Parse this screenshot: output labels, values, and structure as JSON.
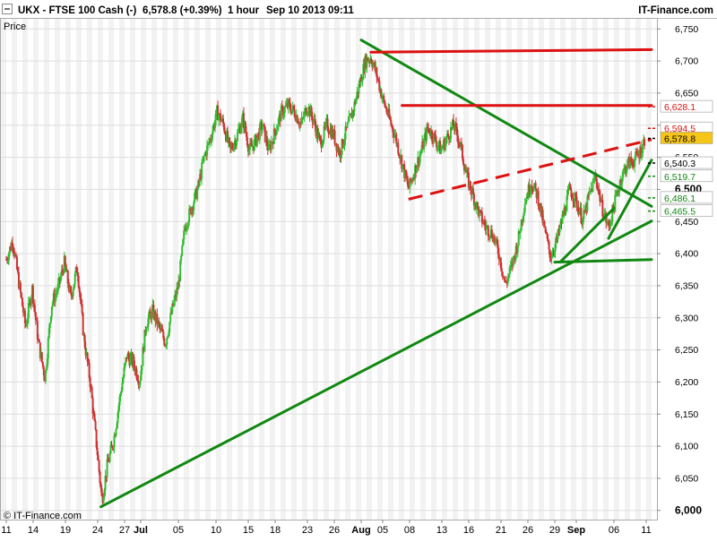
{
  "header": {
    "symbol": "UKX - FTSE 100 Cash (-)",
    "last_change": "6,578.8 (+0.39%)",
    "interval": "1 hour",
    "datetime": "Sep 10 2013 09:11",
    "brand": "IT-Finance.com"
  },
  "price_label": "Price",
  "copyright": "© IT-Finance.com",
  "colors": {
    "bull": "#33bb33",
    "bear": "#cc3333",
    "support": "#118811",
    "resistance": "#dd1111",
    "last_price_bg": "#f5c518",
    "grid_stripe": "#f2f2f2",
    "grid_line": "#dddddd"
  },
  "chart_data": {
    "type": "candlestick",
    "ylim": [
      5985,
      6765
    ],
    "yticks": [
      6000,
      6050,
      6100,
      6150,
      6200,
      6250,
      6300,
      6350,
      6400,
      6450,
      6500,
      6550,
      6600,
      6650,
      6700,
      6750
    ],
    "ytick_labels": [
      "6,000",
      "6,050",
      "6,100",
      "6,150",
      "6,200",
      "6,250",
      "6,300",
      "6,350",
      "6,400",
      "6,450",
      "6,500",
      "6,550",
      "6,600",
      "6,650",
      "6,700",
      "6,750"
    ],
    "xticks": [
      {
        "label": "11",
        "pos": 0.0
      },
      {
        "label": "14",
        "pos": 2.5
      },
      {
        "label": "19",
        "pos": 5.5
      },
      {
        "label": "24",
        "pos": 8.5
      },
      {
        "label": "27",
        "pos": 11.0
      },
      {
        "label": "Jul",
        "pos": 12.5,
        "bold": true
      },
      {
        "label": "05",
        "pos": 16.0
      },
      {
        "label": "10",
        "pos": 19.5
      },
      {
        "label": "15",
        "pos": 22.5
      },
      {
        "label": "18",
        "pos": 25.0
      },
      {
        "label": "23",
        "pos": 28.0
      },
      {
        "label": "26",
        "pos": 30.5
      },
      {
        "label": "Aug",
        "pos": 33.0,
        "bold": true
      },
      {
        "label": "05",
        "pos": 35.0
      },
      {
        "label": "08",
        "pos": 37.5
      },
      {
        "label": "13",
        "pos": 40.5
      },
      {
        "label": "16",
        "pos": 43.0
      },
      {
        "label": "21",
        "pos": 46.0
      },
      {
        "label": "26",
        "pos": 48.5
      },
      {
        "label": "29",
        "pos": 51.0
      },
      {
        "label": "Sep",
        "pos": 53.0,
        "bold": true
      },
      {
        "label": "06",
        "pos": 56.5
      },
      {
        "label": "11",
        "pos": 59.5
      }
    ],
    "xlim": [
      -0.5,
      60.5
    ],
    "close_path": [
      [
        0,
        6390
      ],
      [
        0.6,
        6420
      ],
      [
        1.2,
        6350
      ],
      [
        1.8,
        6285
      ],
      [
        2.4,
        6345
      ],
      [
        3.0,
        6260
      ],
      [
        3.6,
        6205
      ],
      [
        4.2,
        6320
      ],
      [
        4.8,
        6345
      ],
      [
        5.4,
        6385
      ],
      [
        6.0,
        6330
      ],
      [
        6.6,
        6380
      ],
      [
        7.2,
        6270
      ],
      [
        7.8,
        6200
      ],
      [
        8.4,
        6100
      ],
      [
        8.9,
        6015
      ],
      [
        9.4,
        6070
      ],
      [
        10.0,
        6110
      ],
      [
        10.6,
        6180
      ],
      [
        11.2,
        6240
      ],
      [
        11.8,
        6230
      ],
      [
        12.4,
        6200
      ],
      [
        13.0,
        6290
      ],
      [
        13.6,
        6310
      ],
      [
        14.2,
        6285
      ],
      [
        14.8,
        6260
      ],
      [
        15.4,
        6310
      ],
      [
        16.0,
        6350
      ],
      [
        16.6,
        6440
      ],
      [
        17.2,
        6470
      ],
      [
        17.8,
        6500
      ],
      [
        18.4,
        6550
      ],
      [
        19.0,
        6580
      ],
      [
        19.6,
        6620
      ],
      [
        20.2,
        6600
      ],
      [
        20.8,
        6560
      ],
      [
        21.4,
        6580
      ],
      [
        22.0,
        6610
      ],
      [
        22.6,
        6560
      ],
      [
        23.2,
        6575
      ],
      [
        23.8,
        6600
      ],
      [
        24.4,
        6560
      ],
      [
        25.0,
        6590
      ],
      [
        25.6,
        6620
      ],
      [
        26.2,
        6630
      ],
      [
        26.8,
        6620
      ],
      [
        27.4,
        6600
      ],
      [
        28.0,
        6630
      ],
      [
        28.6,
        6605
      ],
      [
        29.2,
        6570
      ],
      [
        29.8,
        6600
      ],
      [
        30.4,
        6585
      ],
      [
        31.0,
        6555
      ],
      [
        31.6,
        6590
      ],
      [
        32.2,
        6620
      ],
      [
        32.8,
        6660
      ],
      [
        33.4,
        6700
      ],
      [
        33.9,
        6705
      ],
      [
        34.4,
        6680
      ],
      [
        35.0,
        6640
      ],
      [
        35.6,
        6610
      ],
      [
        36.2,
        6580
      ],
      [
        36.8,
        6540
      ],
      [
        37.4,
        6500
      ],
      [
        38.0,
        6530
      ],
      [
        38.6,
        6560
      ],
      [
        39.2,
        6595
      ],
      [
        39.8,
        6580
      ],
      [
        40.4,
        6560
      ],
      [
        41.0,
        6580
      ],
      [
        41.6,
        6600
      ],
      [
        42.2,
        6570
      ],
      [
        42.8,
        6520
      ],
      [
        43.4,
        6490
      ],
      [
        44.0,
        6460
      ],
      [
        44.6,
        6440
      ],
      [
        45.2,
        6430
      ],
      [
        45.8,
        6400
      ],
      [
        46.4,
        6350
      ],
      [
        47.0,
        6380
      ],
      [
        47.6,
        6420
      ],
      [
        48.2,
        6480
      ],
      [
        48.8,
        6510
      ],
      [
        49.4,
        6490
      ],
      [
        50.0,
        6440
      ],
      [
        50.6,
        6395
      ],
      [
        51.2,
        6420
      ],
      [
        51.8,
        6460
      ],
      [
        52.4,
        6500
      ],
      [
        53.0,
        6480
      ],
      [
        53.6,
        6450
      ],
      [
        54.2,
        6490
      ],
      [
        54.8,
        6520
      ],
      [
        55.4,
        6470
      ],
      [
        56.0,
        6440
      ],
      [
        56.6,
        6480
      ],
      [
        57.2,
        6520
      ],
      [
        57.8,
        6540
      ],
      [
        58.4,
        6545
      ],
      [
        59.0,
        6560
      ],
      [
        59.4,
        6579
      ]
    ],
    "trendlines": [
      {
        "type": "support",
        "style": "solid",
        "x1": 8.8,
        "y1": 6005,
        "x2": 60.0,
        "y2": 6450
      },
      {
        "type": "support",
        "style": "solid",
        "x1": 33.0,
        "y1": 6732,
        "x2": 60.0,
        "y2": 6473
      },
      {
        "type": "support",
        "style": "solid",
        "x1": 51.0,
        "y1": 6386,
        "x2": 60.0,
        "y2": 6390
      },
      {
        "type": "support",
        "style": "solid",
        "x1": 51.5,
        "y1": 6386,
        "x2": 56.5,
        "y2": 6470
      },
      {
        "type": "support",
        "style": "solid",
        "x1": 56.0,
        "y1": 6423,
        "x2": 60.0,
        "y2": 6545
      },
      {
        "type": "resistance",
        "style": "solid",
        "x1": 33.9,
        "y1": 6713,
        "x2": 60.0,
        "y2": 6717
      },
      {
        "type": "resistance",
        "style": "solid",
        "x1": 36.8,
        "y1": 6630,
        "x2": 60.0,
        "y2": 6630
      },
      {
        "type": "resistance",
        "style": "dashed",
        "x1": 37.4,
        "y1": 6484,
        "x2": 60.0,
        "y2": 6577
      }
    ],
    "level_labels": [
      {
        "value": 6628.1,
        "label": "6,628.1",
        "color": "#dd1111",
        "bg": "#ffffff"
      },
      {
        "value": 6594.5,
        "label": "6,594.5",
        "color": "#dd1111",
        "bg": "#ffffff"
      },
      {
        "value": 6578.8,
        "label": "6,578.8",
        "color": "#000000",
        "bg": "#f5c518"
      },
      {
        "value": 6540.3,
        "label": "6,540.3",
        "color": "#000000",
        "bg": "#ffffff"
      },
      {
        "value": 6519.7,
        "label": "6,519.7",
        "color": "#118811",
        "bg": "#ffffff"
      },
      {
        "value": 6486.1,
        "label": "6,486.1",
        "color": "#118811",
        "bg": "#ffffff"
      },
      {
        "value": 6465.5,
        "label": "6,465.5",
        "color": "#118811",
        "bg": "#ffffff"
      }
    ]
  }
}
